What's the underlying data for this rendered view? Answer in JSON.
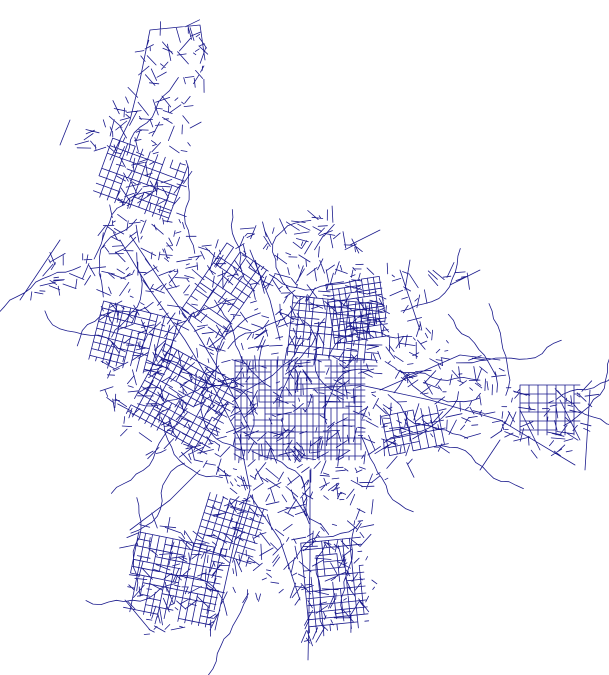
{
  "map": {
    "street_color": "#1a1a8c",
    "background": "#ffffff"
  }
}
